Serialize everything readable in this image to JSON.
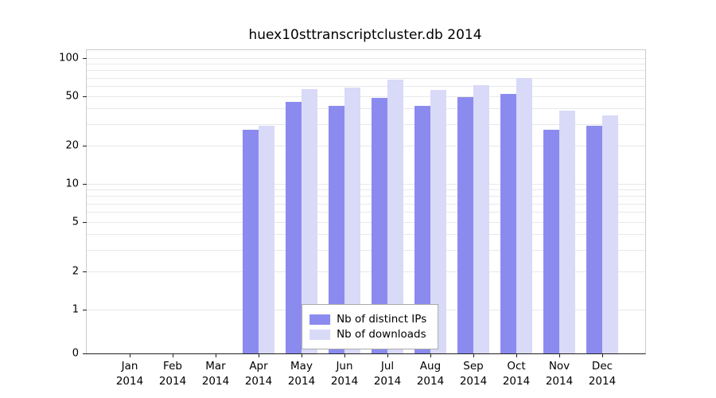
{
  "chart_data": {
    "type": "bar",
    "title": "huex10sttranscriptcluster.db 2014",
    "categories": [
      "Jan",
      "Feb",
      "Mar",
      "Apr",
      "May",
      "Jun",
      "Jul",
      "Aug",
      "Sep",
      "Oct",
      "Nov",
      "Dec"
    ],
    "year_label": "2014",
    "series": [
      {
        "name": "Nb of distinct IPs",
        "color": "#8b8bef",
        "values": [
          0,
          0,
          0,
          27,
          45,
          42,
          48,
          42,
          49,
          52,
          27,
          29
        ]
      },
      {
        "name": "Nb of downloads",
        "color": "#d9d9f8",
        "values": [
          0,
          0,
          0,
          29,
          57,
          58,
          68,
          56,
          61,
          70,
          38,
          35
        ]
      }
    ],
    "yscale": "log",
    "yticks": [
      0,
      1,
      2,
      5,
      10,
      20,
      50,
      100
    ],
    "ylim": [
      0,
      100
    ],
    "grid": "horizontal-minor-log",
    "legend_position": "bottom-center"
  },
  "colors": {
    "distinct_ips": "#8b8bef",
    "downloads": "#d9d9f8",
    "grid": "#e8e8e8",
    "axis": "#222222",
    "frame": "#cccccc"
  }
}
